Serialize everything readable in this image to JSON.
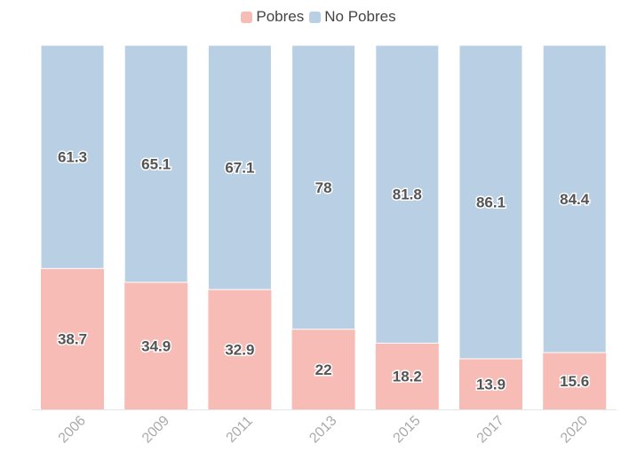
{
  "chart_data": {
    "type": "bar",
    "stacked": true,
    "categories": [
      "2006",
      "2009",
      "2011",
      "2013",
      "2015",
      "2017",
      "2020"
    ],
    "series": [
      {
        "name": "Pobres",
        "color": "#f8bcb6",
        "values": [
          38.7,
          34.9,
          32.9,
          22,
          18.2,
          13.9,
          15.6
        ]
      },
      {
        "name": "No Pobres",
        "color": "#b8cfe4",
        "values": [
          61.3,
          65.1,
          67.1,
          78,
          81.8,
          86.1,
          84.4
        ]
      }
    ],
    "ylim": [
      0,
      100
    ],
    "grid": false,
    "legend_position": "top-center"
  }
}
